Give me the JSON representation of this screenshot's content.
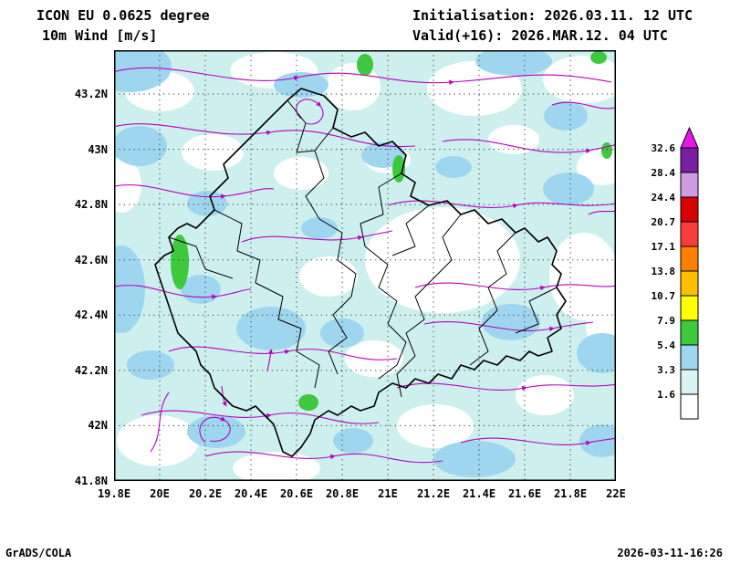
{
  "header": {
    "model": "ICON EU 0.0625 degree",
    "field": "10m Wind [m/s]",
    "initialisation": "Initialisation: 2026.03.11. 12 UTC",
    "valid": "Valid(+16): 2026.MAR.12. 04 UTC"
  },
  "axes": {
    "y_ticks": [
      "43.2N",
      "43N",
      "42.8N",
      "42.6N",
      "42.4N",
      "42.2N",
      "42N",
      "41.8N"
    ],
    "x_ticks": [
      "19.8E",
      "20E",
      "20.2E",
      "20.4E",
      "20.6E",
      "20.8E",
      "21E",
      "21.2E",
      "21.4E",
      "21.6E",
      "21.8E",
      "22E"
    ]
  },
  "colorbar": {
    "levels": [
      "1.6",
      "3.3",
      "5.4",
      "7.9",
      "10.7",
      "13.8",
      "17.1",
      "20.7",
      "24.4",
      "28.4",
      "32.6"
    ],
    "colors_bottom_to_top": [
      "#ffffff",
      "#d9f4f2",
      "#9fd6ef",
      "#3ec83e",
      "#ffff00",
      "#ffc000",
      "#ff8000",
      "#fa3c3c",
      "#d80000",
      "#cf9ce0",
      "#7a1fa2"
    ],
    "arrow_color": "#e816e8"
  },
  "map_colors": {
    "base_fill": "#cdf0ee",
    "blob_blue": "#9fd6ef",
    "blob_green": "#3ec83e",
    "streamline": "#bb00bb",
    "boundary": "#000000"
  },
  "footer": {
    "left": "GrADS/COLA",
    "right": "2026-03-11-16:26"
  }
}
